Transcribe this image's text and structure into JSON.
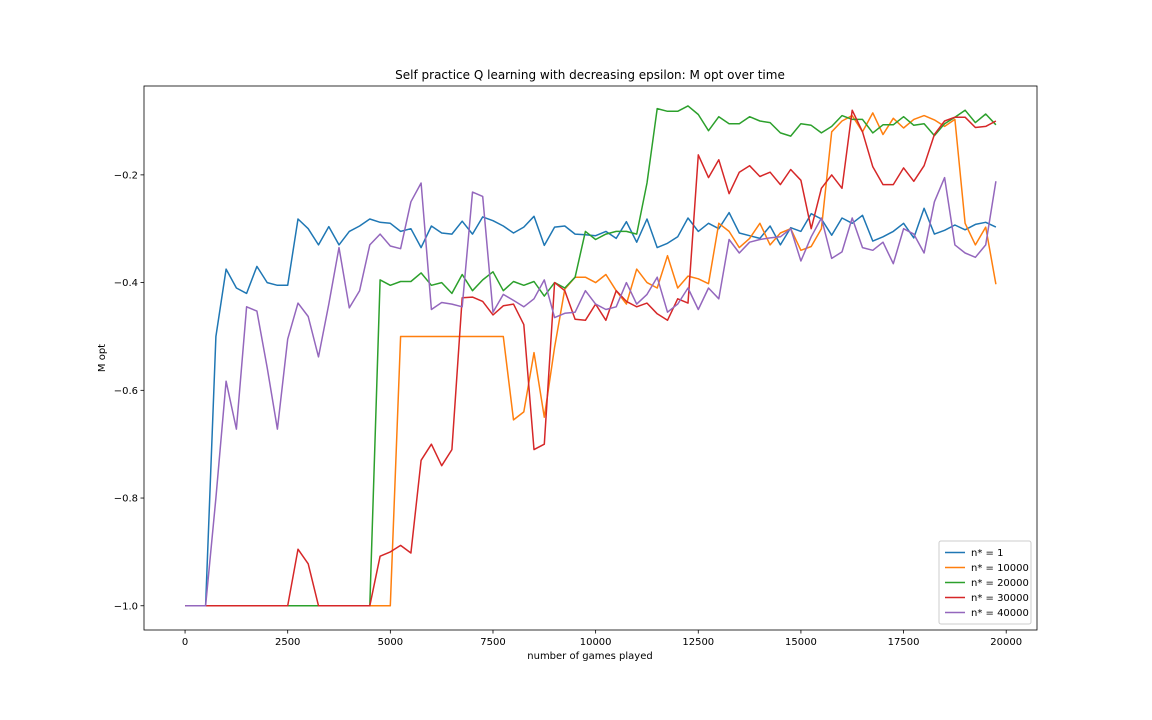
{
  "chart_data": {
    "type": "line",
    "title": "Self practice Q learning with decreasing epsilon: M opt over time",
    "xlabel": "number of games played",
    "ylabel": "M opt",
    "xlim": [
      -1000,
      20750
    ],
    "ylim": [
      -1.045,
      -0.035
    ],
    "xticks": [
      0,
      2500,
      5000,
      7500,
      10000,
      12500,
      15000,
      17500,
      20000
    ],
    "xtick_labels": [
      "0",
      "2500",
      "5000",
      "7500",
      "10000",
      "12500",
      "15000",
      "17500",
      "20000"
    ],
    "yticks": [
      -1.0,
      -0.8,
      -0.6,
      -0.4,
      -0.2
    ],
    "ytick_labels": [
      "−1.0",
      "−0.8",
      "−0.6",
      "−0.4",
      "−0.2"
    ],
    "grid": false,
    "legend_position": "lower-right",
    "x": [
      0,
      250,
      500,
      750,
      1000,
      1250,
      1500,
      1750,
      2000,
      2250,
      2500,
      2750,
      3000,
      3250,
      3500,
      3750,
      4000,
      4250,
      4500,
      4750,
      5000,
      5250,
      5500,
      5750,
      6000,
      6250,
      6500,
      6750,
      7000,
      7250,
      7500,
      7750,
      8000,
      8250,
      8500,
      8750,
      9000,
      9250,
      9500,
      9750,
      10000,
      10250,
      10500,
      10750,
      11000,
      11250,
      11500,
      11750,
      12000,
      12250,
      12500,
      12750,
      13000,
      13250,
      13500,
      13750,
      14000,
      14250,
      14500,
      14750,
      15000,
      15250,
      15500,
      15750,
      16000,
      16250,
      16500,
      16750,
      17000,
      17250,
      17500,
      17750,
      18000,
      18250,
      18500,
      18750,
      19000,
      19250,
      19500,
      19750
    ],
    "series": [
      {
        "name": "n* = 1",
        "color": "#1f77b4",
        "values": [
          -1.0,
          -1.0,
          -1.0,
          -0.5,
          -0.375,
          -0.41,
          -0.42,
          -0.37,
          -0.4,
          -0.405,
          -0.405,
          -0.282,
          -0.3,
          -0.33,
          -0.296,
          -0.33,
          -0.305,
          -0.295,
          -0.282,
          -0.288,
          -0.29,
          -0.305,
          -0.3,
          -0.335,
          -0.295,
          -0.308,
          -0.31,
          -0.286,
          -0.31,
          -0.278,
          -0.285,
          -0.295,
          -0.308,
          -0.297,
          -0.277,
          -0.331,
          -0.297,
          -0.295,
          -0.31,
          -0.311,
          -0.313,
          -0.305,
          -0.318,
          -0.287,
          -0.325,
          -0.282,
          -0.335,
          -0.327,
          -0.315,
          -0.28,
          -0.305,
          -0.29,
          -0.3,
          -0.27,
          -0.308,
          -0.313,
          -0.318,
          -0.295,
          -0.33,
          -0.298,
          -0.305,
          -0.272,
          -0.282,
          -0.312,
          -0.28,
          -0.29,
          -0.275,
          -0.323,
          -0.315,
          -0.305,
          -0.29,
          -0.317,
          -0.262,
          -0.31,
          -0.303,
          -0.293,
          -0.302,
          -0.292,
          -0.288,
          -0.297
        ]
      },
      {
        "name": "n* = 10000",
        "color": "#ff7f0e",
        "values": [
          -1.0,
          -1.0,
          -1.0,
          -1.0,
          -1.0,
          -1.0,
          -1.0,
          -1.0,
          -1.0,
          -1.0,
          -1.0,
          -1.0,
          -1.0,
          -1.0,
          -1.0,
          -1.0,
          -1.0,
          -1.0,
          -1.0,
          -1.0,
          -1.0,
          -0.5,
          -0.5,
          -0.5,
          -0.5,
          -0.5,
          -0.5,
          -0.5,
          -0.5,
          -0.5,
          -0.5,
          -0.5,
          -0.655,
          -0.64,
          -0.53,
          -0.65,
          -0.52,
          -0.412,
          -0.39,
          -0.39,
          -0.4,
          -0.385,
          -0.415,
          -0.44,
          -0.375,
          -0.4,
          -0.41,
          -0.35,
          -0.41,
          -0.388,
          -0.393,
          -0.402,
          -0.29,
          -0.305,
          -0.335,
          -0.318,
          -0.29,
          -0.33,
          -0.308,
          -0.3,
          -0.34,
          -0.333,
          -0.3,
          -0.12,
          -0.1,
          -0.09,
          -0.12,
          -0.085,
          -0.125,
          -0.095,
          -0.113,
          -0.097,
          -0.09,
          -0.098,
          -0.11,
          -0.097,
          -0.29,
          -0.33,
          -0.297,
          -0.403
        ]
      },
      {
        "name": "n* = 20000",
        "color": "#2ca02c",
        "values": [
          -1.0,
          -1.0,
          -1.0,
          -1.0,
          -1.0,
          -1.0,
          -1.0,
          -1.0,
          -1.0,
          -1.0,
          -1.0,
          -1.0,
          -1.0,
          -1.0,
          -1.0,
          -1.0,
          -1.0,
          -1.0,
          -1.0,
          -0.395,
          -0.405,
          -0.398,
          -0.398,
          -0.382,
          -0.405,
          -0.4,
          -0.42,
          -0.385,
          -0.415,
          -0.395,
          -0.38,
          -0.415,
          -0.398,
          -0.405,
          -0.398,
          -0.425,
          -0.4,
          -0.41,
          -0.39,
          -0.305,
          -0.32,
          -0.31,
          -0.305,
          -0.305,
          -0.31,
          -0.215,
          -0.077,
          -0.082,
          -0.082,
          -0.072,
          -0.088,
          -0.118,
          -0.092,
          -0.105,
          -0.105,
          -0.092,
          -0.1,
          -0.103,
          -0.122,
          -0.128,
          -0.105,
          -0.108,
          -0.122,
          -0.11,
          -0.09,
          -0.097,
          -0.097,
          -0.122,
          -0.107,
          -0.107,
          -0.092,
          -0.108,
          -0.105,
          -0.127,
          -0.105,
          -0.093,
          -0.08,
          -0.103,
          -0.087,
          -0.107
        ]
      },
      {
        "name": "n* = 30000",
        "color": "#d62728",
        "values": [
          -1.0,
          -1.0,
          -1.0,
          -1.0,
          -1.0,
          -1.0,
          -1.0,
          -1.0,
          -1.0,
          -1.0,
          -1.0,
          -0.895,
          -0.922,
          -1.0,
          -1.0,
          -1.0,
          -1.0,
          -1.0,
          -1.0,
          -0.908,
          -0.9,
          -0.888,
          -0.902,
          -0.73,
          -0.7,
          -0.74,
          -0.71,
          -0.428,
          -0.427,
          -0.435,
          -0.46,
          -0.443,
          -0.44,
          -0.478,
          -0.71,
          -0.7,
          -0.4,
          -0.415,
          -0.468,
          -0.47,
          -0.44,
          -0.47,
          -0.415,
          -0.435,
          -0.445,
          -0.438,
          -0.458,
          -0.47,
          -0.43,
          -0.438,
          -0.163,
          -0.205,
          -0.172,
          -0.235,
          -0.195,
          -0.183,
          -0.203,
          -0.195,
          -0.218,
          -0.19,
          -0.21,
          -0.3,
          -0.225,
          -0.2,
          -0.225,
          -0.08,
          -0.12,
          -0.185,
          -0.218,
          -0.218,
          -0.187,
          -0.212,
          -0.183,
          -0.125,
          -0.1,
          -0.093,
          -0.093,
          -0.112,
          -0.11,
          -0.1
        ]
      },
      {
        "name": "n* = 40000",
        "color": "#9467bd",
        "values": [
          -1.0,
          -1.0,
          -1.0,
          -0.8,
          -0.583,
          -0.672,
          -0.445,
          -0.453,
          -0.558,
          -0.672,
          -0.505,
          -0.438,
          -0.463,
          -0.538,
          -0.44,
          -0.335,
          -0.447,
          -0.415,
          -0.33,
          -0.31,
          -0.332,
          -0.337,
          -0.25,
          -0.215,
          -0.45,
          -0.437,
          -0.44,
          -0.445,
          -0.232,
          -0.24,
          -0.455,
          -0.422,
          -0.433,
          -0.445,
          -0.43,
          -0.395,
          -0.465,
          -0.457,
          -0.455,
          -0.415,
          -0.44,
          -0.45,
          -0.445,
          -0.4,
          -0.44,
          -0.422,
          -0.39,
          -0.455,
          -0.44,
          -0.41,
          -0.45,
          -0.41,
          -0.43,
          -0.32,
          -0.345,
          -0.325,
          -0.32,
          -0.317,
          -0.315,
          -0.3,
          -0.36,
          -0.315,
          -0.28,
          -0.355,
          -0.343,
          -0.28,
          -0.335,
          -0.34,
          -0.325,
          -0.365,
          -0.3,
          -0.31,
          -0.345,
          -0.25,
          -0.205,
          -0.33,
          -0.345,
          -0.353,
          -0.33,
          -0.212
        ]
      }
    ]
  }
}
